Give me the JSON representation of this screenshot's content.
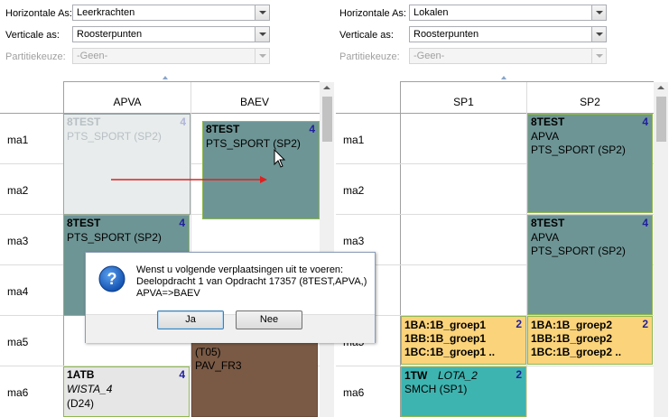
{
  "left_panel": {
    "horizontal": {
      "label": "Horizontale As:",
      "value": "Leerkrachten"
    },
    "vertical": {
      "label": "Verticale as:",
      "value": "Roosterpunten"
    },
    "partition": {
      "label": "Partitiekeuze:",
      "value": "-Geen-"
    },
    "columns": [
      "APVA",
      "BAEV"
    ],
    "rows": [
      "ma1",
      "ma2",
      "ma3",
      "ma4",
      "ma5",
      "ma6"
    ]
  },
  "right_panel": {
    "horizontal": {
      "label": "Horizontale As:",
      "value": "Lokalen"
    },
    "vertical": {
      "label": "Verticale as:",
      "value": "Roosterpunten"
    },
    "partition": {
      "label": "Partitiekeuze:",
      "value": "-Geen-"
    },
    "columns": [
      "SP1",
      "SP2"
    ],
    "rows": [
      "ma1",
      "ma2",
      "ma3",
      "ma4",
      "ma5",
      "ma6"
    ]
  },
  "cards": {
    "ghost": {
      "title": "8TEST",
      "count": "4",
      "line1": "PTS_SPORT (SP2)"
    },
    "baev_ma1": {
      "title": "8TEST",
      "count": "4",
      "line1": "PTS_SPORT (SP2)"
    },
    "apva_ma3": {
      "title": "8TEST",
      "count": "4",
      "line1": "PTS_SPORT (SP2)"
    },
    "baev_ma5": {
      "line1": "(T05)",
      "line2": "PAV_FR3"
    },
    "apva_ma6": {
      "title": "1ATB",
      "count": "4",
      "line1": "WISTA_4",
      "line2": "(D24)"
    },
    "sp2_ma1": {
      "title": "8TEST",
      "count": "4",
      "line1": "APVA",
      "line2": "PTS_SPORT (SP2)"
    },
    "sp2_ma3": {
      "title": "8TEST",
      "count": "4",
      "line1": "APVA",
      "line2": "PTS_SPORT (SP2)"
    },
    "sp1_ma5": {
      "count": "2",
      "line1": "1BA:1B_groep1",
      "line2": "1BB:1B_groep1",
      "line3": "1BC:1B_groep1  .."
    },
    "sp2_ma5": {
      "count": "2",
      "line1": "1BA:1B_groep2",
      "line2": "1BB:1B_groep2",
      "line3": "1BC:1B_groep2  .."
    },
    "sp1_ma6": {
      "title": "1TW",
      "code": "LOTA_2",
      "count": "2",
      "line1": "SMCH   (SP1)"
    }
  },
  "dialog": {
    "line1": "Wenst u volgende verplaatsingen uit te voeren:",
    "line2": "Deelopdracht 1 van Opdracht 17357 (8TEST,APVA,)",
    "line3": "APVA=>BAEV",
    "yes": "Ja",
    "no": "Nee"
  },
  "colors": {
    "teal_card": "#6e9595",
    "ghost_card": "#e8ecec",
    "orange_card": "#fbd37a",
    "brown_card": "#7a5a45",
    "cyan_card": "#3eb4b0",
    "grey_card": "#e6e6e6",
    "arrow": "#e02020"
  },
  "icons": {
    "dialog_icon": "question-icon",
    "cursor": "mouse-pointer-icon"
  }
}
